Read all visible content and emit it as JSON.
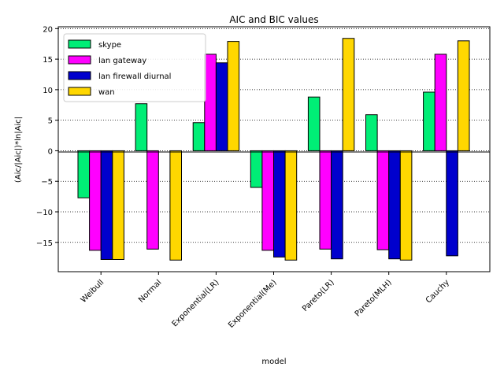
{
  "chart_data": {
    "type": "bar",
    "title": "AIC and BIC values",
    "xlabel": "model",
    "ylabel": "(Aic/|Aic|)*ln|Aic|",
    "categories": [
      "Weibull",
      "Normal",
      "Exponential(LR)",
      "Exponential(Me)",
      "Pareto(LR)",
      "Pareto(MLH)",
      "Cauchy"
    ],
    "series": [
      {
        "name": "skype",
        "color": "#00ee76",
        "values": [
          -7.7,
          7.7,
          4.6,
          -6.0,
          8.8,
          5.9,
          9.6
        ]
      },
      {
        "name": "lan gateway",
        "color": "#ff00ff",
        "values": [
          -16.3,
          -16.1,
          15.8,
          -16.3,
          -16.1,
          -16.2,
          15.8
        ]
      },
      {
        "name": "lan firewall diurnal",
        "color": "#0000cd",
        "values": [
          -17.8,
          0,
          14.4,
          -17.4,
          -17.7,
          -17.7,
          -17.2
        ]
      },
      {
        "name": "wan",
        "color": "#ffd700",
        "values": [
          -17.8,
          -17.9,
          17.9,
          -17.9,
          18.4,
          -17.9,
          18.0
        ]
      }
    ],
    "ylim": [
      -19.8,
      20.3
    ],
    "yticks": [
      -15,
      -10,
      -5,
      0,
      5,
      10,
      15,
      20
    ],
    "grid": "horizontal dotted",
    "legend_position": "top-left"
  }
}
